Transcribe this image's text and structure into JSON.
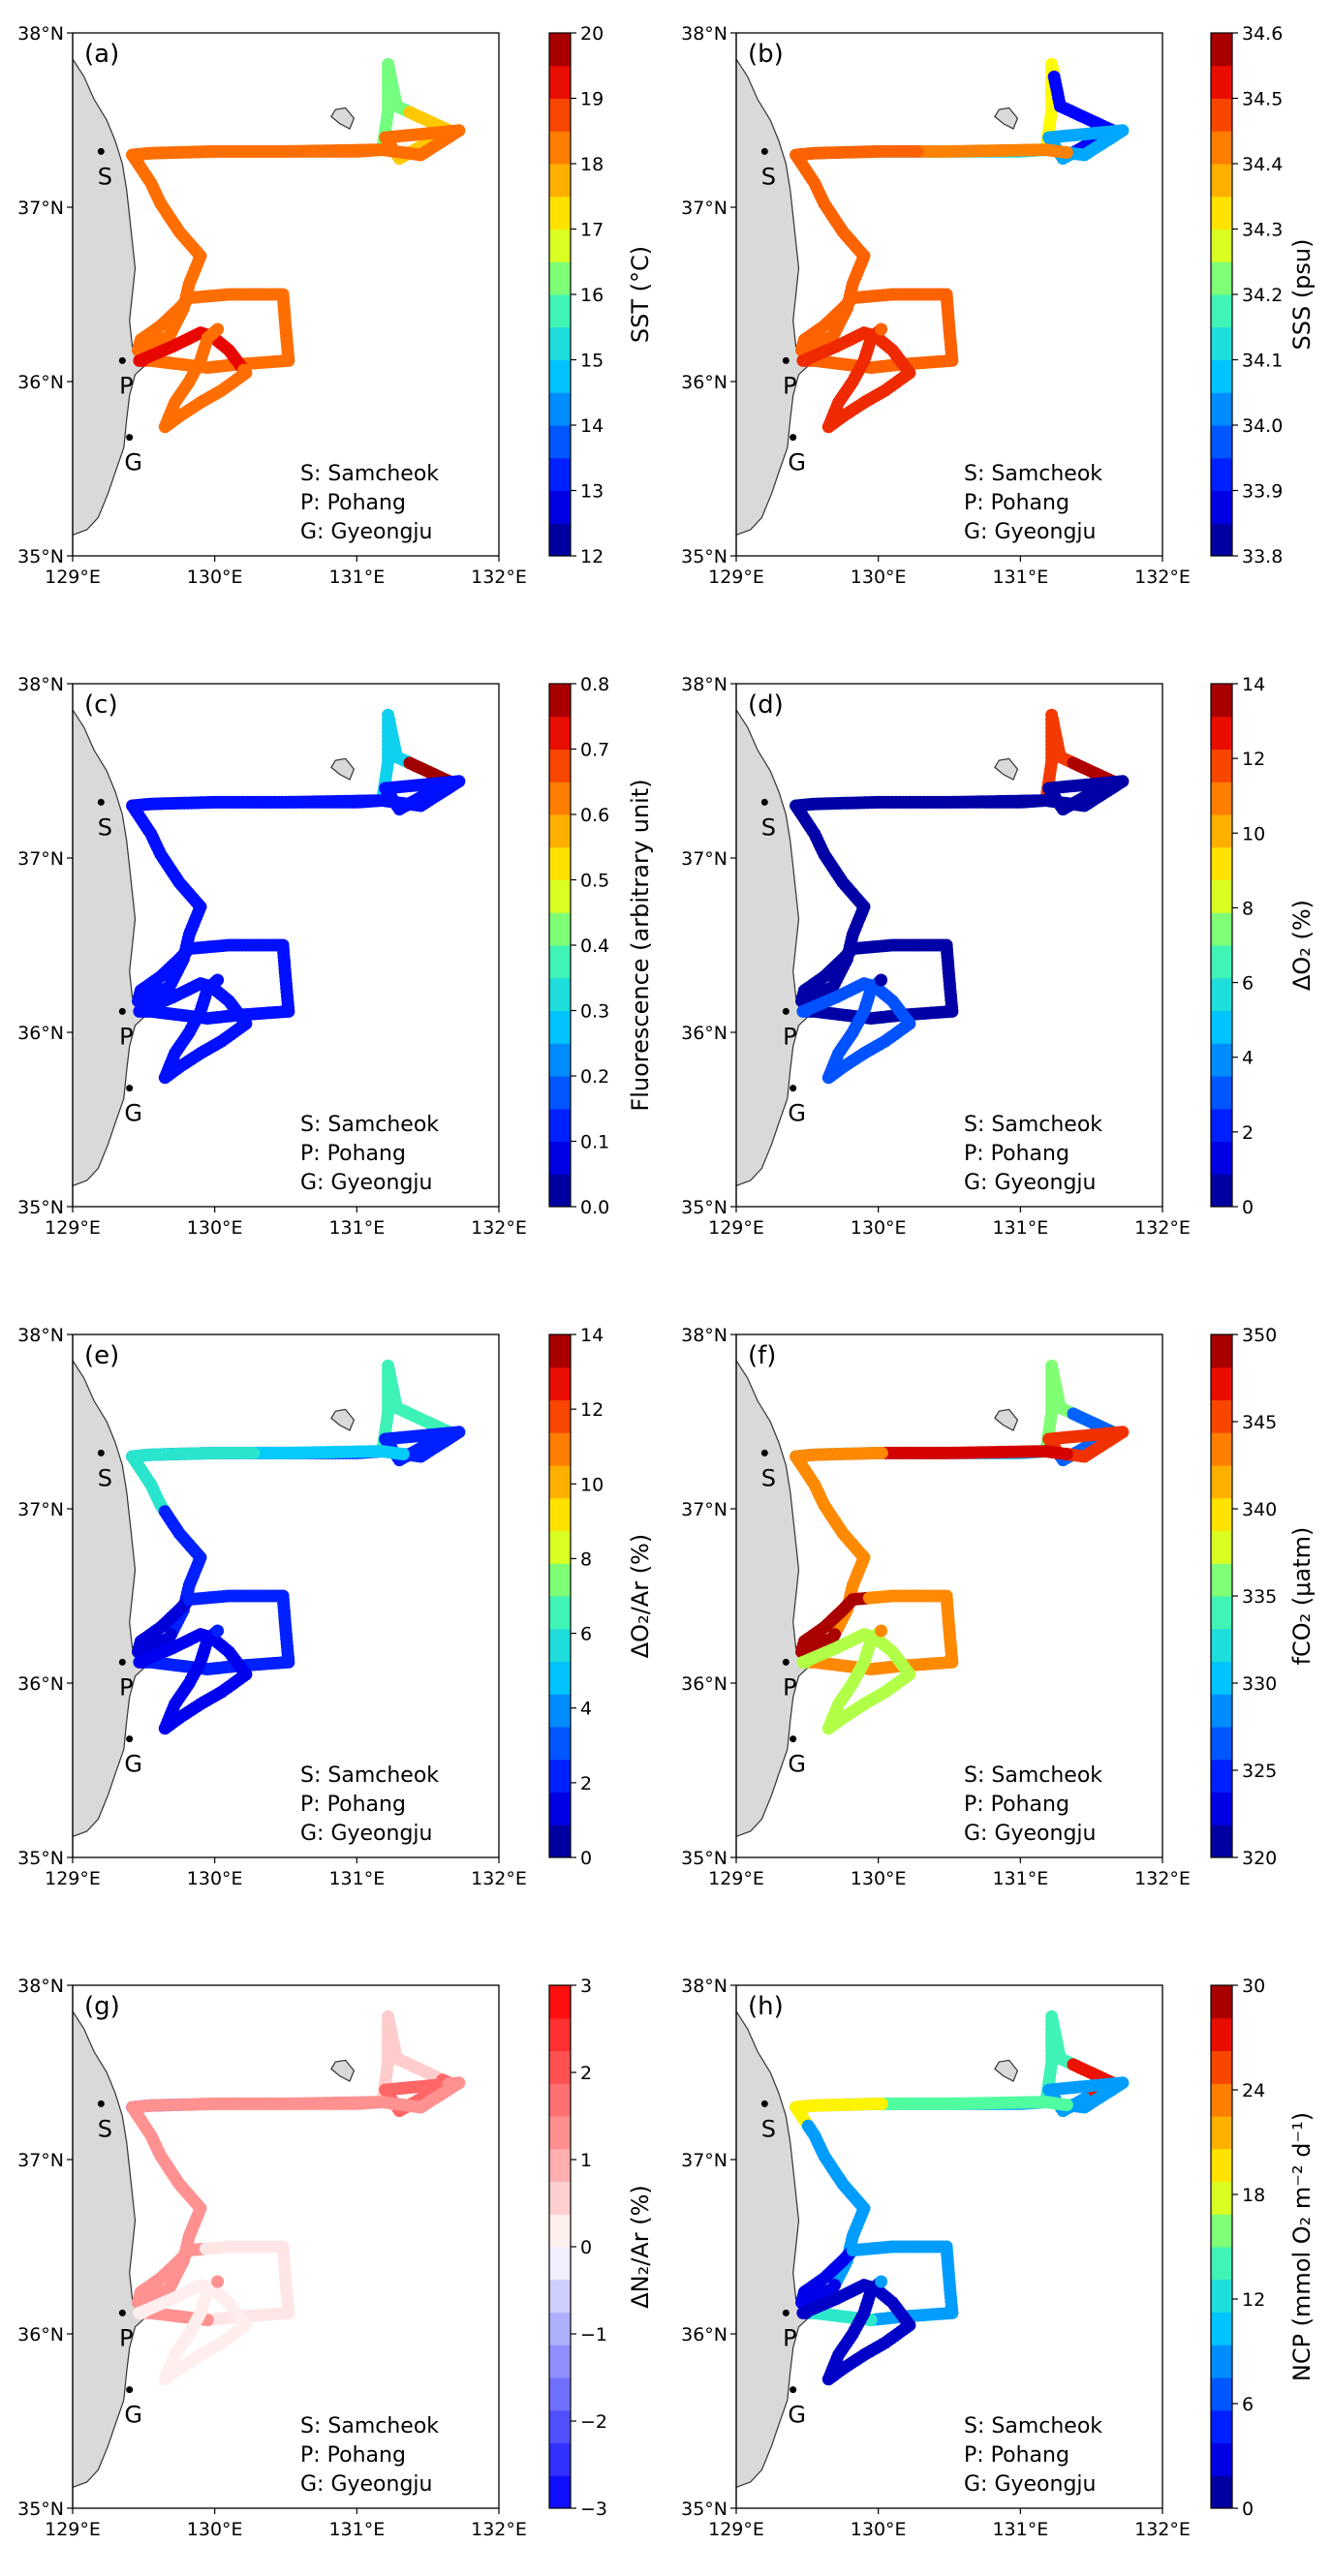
{
  "figure": {
    "legend_lines": [
      "S: Samcheok",
      "P: Pohang",
      "G: Gyeongju"
    ],
    "x_ticks": [
      "129°E",
      "130°E",
      "131°E",
      "132°E"
    ],
    "y_ticks": [
      "35°N",
      "36°N",
      "37°N",
      "38°N"
    ],
    "towns": [
      {
        "label": "S",
        "lon": 129.2,
        "lat": 37.32
      },
      {
        "label": "P",
        "lon": 129.35,
        "lat": 36.12
      },
      {
        "label": "G",
        "lon": 129.4,
        "lat": 35.68
      }
    ]
  },
  "chart_data": [
    {
      "type": "scatter",
      "panel_label": "(a)",
      "colorbar_label": "SST (°C)",
      "colormap": "jet",
      "cbar_ticks": [
        "12",
        "13",
        "14",
        "15",
        "16",
        "17",
        "18",
        "19",
        "20"
      ],
      "vmin": 12,
      "vmax": 20,
      "xlim": [
        129,
        132
      ],
      "ylim": [
        35,
        38
      ],
      "grid": "off",
      "legend": "bottom-right",
      "field": {
        "base": 18.4,
        "rules": [
          [
            0.14,
            0.2,
            16.2
          ],
          [
            0.2,
            0.26,
            17.5
          ],
          [
            0.82,
            0.89,
            19.3
          ]
        ]
      }
    },
    {
      "type": "scatter",
      "panel_label": "(b)",
      "colorbar_label": "SSS (psu)",
      "colormap": "jet",
      "cbar_ticks": [
        "33.8",
        "33.9",
        "34.0",
        "34.1",
        "34.2",
        "34.3",
        "34.4",
        "34.5",
        "34.6"
      ],
      "vmin": 33.8,
      "vmax": 34.6,
      "xlim": [
        129,
        132
      ],
      "ylim": [
        35,
        38
      ],
      "grid": "off",
      "legend": "bottom-right",
      "field": {
        "base": 34.45,
        "rules": [
          [
            0.0,
            0.14,
            34.12
          ],
          [
            0.14,
            0.18,
            34.3
          ],
          [
            0.18,
            0.25,
            33.9
          ],
          [
            0.25,
            0.34,
            34.05
          ],
          [
            0.34,
            0.42,
            34.42
          ],
          [
            0.82,
            1.0,
            34.5
          ]
        ]
      }
    },
    {
      "type": "scatter",
      "panel_label": "(c)",
      "colorbar_label": "Fluorescence (arbitrary unit)",
      "colormap": "jet",
      "cbar_ticks": [
        "0.0",
        "0.1",
        "0.2",
        "0.3",
        "0.4",
        "0.5",
        "0.6",
        "0.7",
        "0.8"
      ],
      "vmin": 0,
      "vmax": 0.8,
      "xlim": [
        129,
        132
      ],
      "ylim": [
        35,
        38
      ],
      "grid": "off",
      "legend": "bottom-right",
      "field": {
        "base": 0.11,
        "rules": [
          [
            0.0,
            0.03,
            0.6
          ],
          [
            0.14,
            0.2,
            0.3
          ],
          [
            0.2,
            0.23,
            0.78
          ]
        ]
      }
    },
    {
      "type": "scatter",
      "panel_label": "(d)",
      "colorbar_label": "ΔO₂ (%)",
      "colormap": "jet",
      "cbar_ticks": [
        "0",
        "2",
        "4",
        "6",
        "8",
        "10",
        "12",
        "14"
      ],
      "vmin": 0,
      "vmax": 14,
      "xlim": [
        129,
        132
      ],
      "ylim": [
        35,
        38
      ],
      "grid": "off",
      "legend": "bottom-right",
      "field": {
        "base": 0.5,
        "rules": [
          [
            0.0,
            0.03,
            6
          ],
          [
            0.14,
            0.2,
            12
          ],
          [
            0.2,
            0.23,
            13.5
          ],
          [
            0.82,
            1.0,
            3
          ]
        ]
      }
    },
    {
      "type": "scatter",
      "panel_label": "(e)",
      "colorbar_label": "ΔO₂/Ar (%)",
      "colormap": "jet",
      "cbar_ticks": [
        "0",
        "2",
        "4",
        "6",
        "8",
        "10",
        "12",
        "14"
      ],
      "vmin": 0,
      "vmax": 14,
      "xlim": [
        129,
        132
      ],
      "ylim": [
        35,
        38
      ],
      "grid": "off",
      "legend": "bottom-right",
      "field": {
        "base": 2.2,
        "rules": [
          [
            0.14,
            0.23,
            6.5
          ],
          [
            0.34,
            0.42,
            5
          ],
          [
            0.42,
            0.52,
            6
          ],
          [
            0.59,
            0.65,
            1.2
          ],
          [
            0.82,
            1.0,
            1.5
          ]
        ]
      }
    },
    {
      "type": "scatter",
      "panel_label": "(f)",
      "colorbar_label": "fCO₂ (μatm)",
      "colormap": "jet",
      "cbar_ticks": [
        "320",
        "325",
        "330",
        "335",
        "340",
        "345",
        "350"
      ],
      "vmin": 320,
      "vmax": 350,
      "xlim": [
        129,
        132
      ],
      "ylim": [
        35,
        38
      ],
      "grid": "off",
      "legend": "bottom-right",
      "field": {
        "base": 343,
        "rules": [
          [
            0.0,
            0.14,
            330
          ],
          [
            0.14,
            0.2,
            336
          ],
          [
            0.2,
            0.26,
            327
          ],
          [
            0.26,
            0.34,
            346
          ],
          [
            0.34,
            0.44,
            348
          ],
          [
            0.59,
            0.66,
            349
          ],
          [
            0.82,
            1.0,
            337
          ]
        ]
      }
    },
    {
      "type": "scatter",
      "panel_label": "(g)",
      "colorbar_label": "ΔN₂/Ar (%)",
      "colormap": "bwr",
      "cbar_ticks": [
        "−3",
        "−2",
        "−1",
        "0",
        "1",
        "2",
        "3"
      ],
      "vmin": -3,
      "vmax": 3,
      "xlim": [
        129,
        132
      ],
      "ylim": [
        35,
        38
      ],
      "grid": "off",
      "legend": "bottom-right",
      "field": {
        "base": 1.3,
        "rules": [
          [
            0.0,
            0.03,
            -2.5
          ],
          [
            0.14,
            0.22,
            0.6
          ],
          [
            0.22,
            0.3,
            1.8
          ],
          [
            0.66,
            0.78,
            0.3
          ],
          [
            0.82,
            1.0,
            0.2
          ]
        ]
      }
    },
    {
      "type": "scatter",
      "panel_label": "(h)",
      "colorbar_label": "NCP (mmol O₂ m⁻² d⁻¹)",
      "colormap": "jet",
      "cbar_ticks": [
        "0",
        "6",
        "12",
        "18",
        "24",
        "30"
      ],
      "vmin": 0,
      "vmax": 30,
      "xlim": [
        129,
        132
      ],
      "ylim": [
        35,
        38
      ],
      "grid": "off",
      "legend": "bottom-right",
      "field": {
        "base": 9,
        "rules": [
          [
            0.0,
            0.03,
            22
          ],
          [
            0.14,
            0.2,
            14
          ],
          [
            0.2,
            0.24,
            27
          ],
          [
            0.34,
            0.44,
            15
          ],
          [
            0.44,
            0.5,
            19
          ],
          [
            0.59,
            0.65,
            3
          ],
          [
            0.78,
            0.82,
            13
          ],
          [
            0.82,
            1.0,
            2
          ]
        ]
      }
    }
  ]
}
